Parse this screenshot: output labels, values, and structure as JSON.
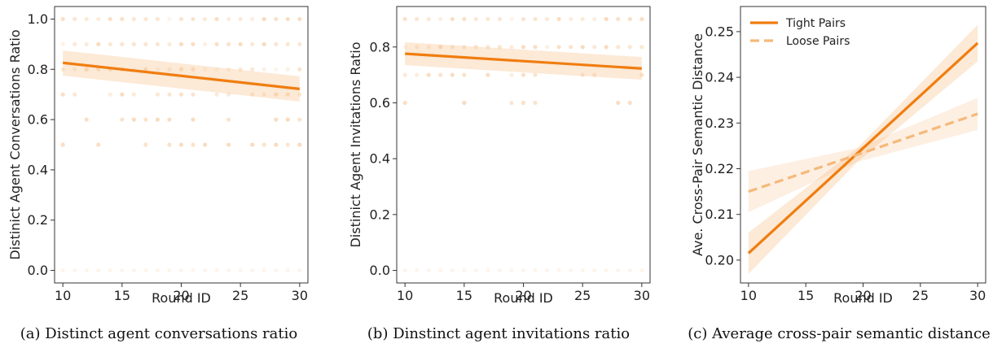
{
  "colors": {
    "accent": "#f07d0f",
    "accent_light": "#f5b97a",
    "band": "#f7c08a",
    "dot": "#f4c596",
    "axis": "#333333"
  },
  "chart_data": [
    {
      "id": "a",
      "type": "scatter",
      "caption": "(a) Distinct agent conversations ratio",
      "xlabel": "Round ID",
      "ylabel": "Distinict Agent Conversations Ratio",
      "xlim": [
        9.3,
        30.7
      ],
      "ylim": [
        -0.05,
        1.05
      ],
      "xticks": [
        10,
        15,
        20,
        25,
        30
      ],
      "yticks": [
        0.0,
        0.2,
        0.4,
        0.6,
        0.8,
        1.0
      ],
      "ytick_labels": [
        "0.0",
        "0.2",
        "0.4",
        "0.6",
        "0.8",
        "1.0"
      ],
      "dot_levels": [
        1.0,
        0.9,
        0.8,
        0.7,
        0.6,
        0.5,
        0.0
      ],
      "series": [
        {
          "style": "solid",
          "line": [
            [
              10,
              0.826
            ],
            [
              30,
              0.722
            ]
          ],
          "band_lower": [
            [
              10,
              0.775
            ],
            [
              30,
              0.672
            ]
          ],
          "band_upper": [
            [
              10,
              0.875
            ],
            [
              30,
              0.772
            ]
          ]
        }
      ],
      "legend": []
    },
    {
      "id": "b",
      "type": "scatter",
      "caption": "(b) Dinstinct agent invitations ratio",
      "xlabel": "Round ID",
      "ylabel": "Distinict Agent Invitations Ratio",
      "xlim": [
        9.3,
        30.7
      ],
      "ylim": [
        -0.045,
        0.945
      ],
      "xticks": [
        10,
        15,
        20,
        25,
        30
      ],
      "yticks": [
        0.0,
        0.2,
        0.4,
        0.6,
        0.8
      ],
      "ytick_labels": [
        "0.0",
        "0.2",
        "0.4",
        "0.6",
        "0.8"
      ],
      "dot_levels": [
        0.9,
        0.8,
        0.7,
        0.6,
        0.0
      ],
      "series": [
        {
          "style": "solid",
          "line": [
            [
              10,
              0.776
            ],
            [
              30,
              0.723
            ]
          ],
          "band_lower": [
            [
              10,
              0.735
            ],
            [
              30,
              0.683
            ]
          ],
          "band_upper": [
            [
              10,
              0.817
            ],
            [
              30,
              0.764
            ]
          ]
        }
      ],
      "legend": []
    },
    {
      "id": "c",
      "type": "line",
      "caption": "(c) Average cross-pair semantic distance",
      "xlabel": "Round ID",
      "ylabel": "Ave. Cross-Pair Semantic Distance",
      "xlim": [
        9.3,
        30.7
      ],
      "ylim": [
        0.195,
        0.2555
      ],
      "xticks": [
        10,
        15,
        20,
        25,
        30
      ],
      "yticks": [
        0.2,
        0.21,
        0.22,
        0.23,
        0.24,
        0.25
      ],
      "ytick_labels": [
        "0.20",
        "0.21",
        "0.22",
        "0.23",
        "0.24",
        "0.25"
      ],
      "dot_levels": [],
      "series": [
        {
          "name": "Tight Pairs",
          "style": "solid",
          "line": [
            [
              10,
              0.2015
            ],
            [
              30,
              0.2475
            ]
          ],
          "band_lower": [
            [
              10,
              0.197
            ],
            [
              19.5,
              0.2215
            ],
            [
              30,
              0.2435
            ]
          ],
          "band_upper": [
            [
              10,
              0.206
            ],
            [
              19.5,
              0.2245
            ],
            [
              30,
              0.2515
            ]
          ]
        },
        {
          "name": "Loose Pairs",
          "style": "dashed",
          "line": [
            [
              10,
              0.215
            ],
            [
              30,
              0.232
            ]
          ],
          "band_lower": [
            [
              10,
              0.2105
            ],
            [
              19.5,
              0.2215
            ],
            [
              30,
              0.2285
            ]
          ],
          "band_upper": [
            [
              10,
              0.2195
            ],
            [
              19.5,
              0.2245
            ],
            [
              30,
              0.2355
            ]
          ]
        }
      ],
      "legend": [
        "Tight Pairs",
        "Loose Pairs"
      ]
    }
  ]
}
